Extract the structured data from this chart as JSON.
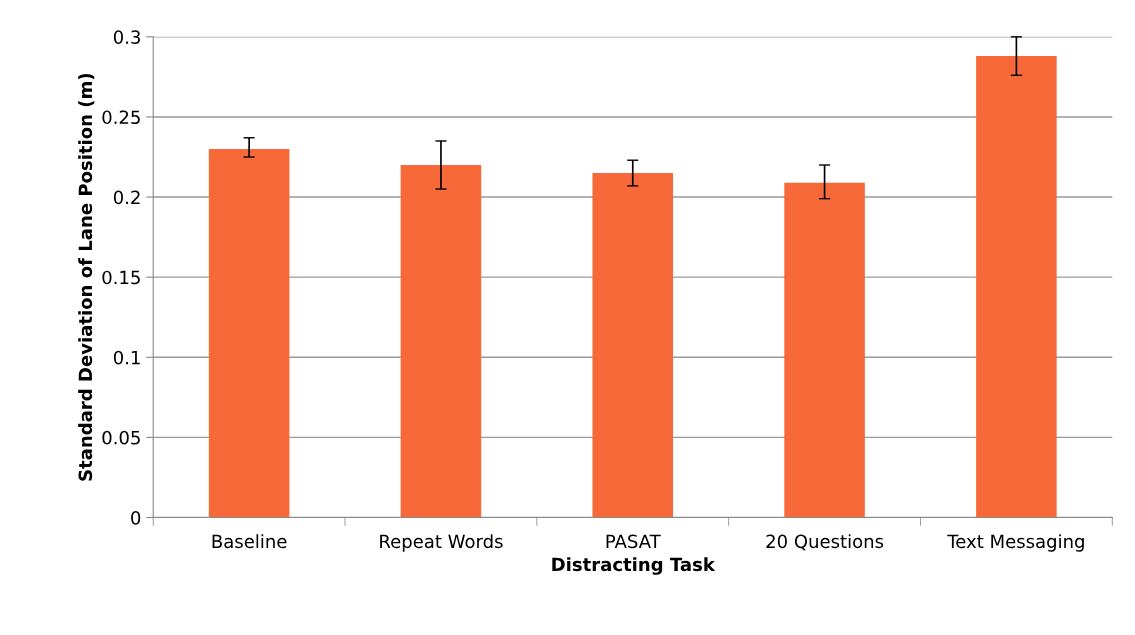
{
  "chart_data": {
    "type": "bar",
    "xlabel": "Distracting Task",
    "ylabel": "Standard Deviation of Lane Position (m)",
    "categories": [
      "Baseline",
      "Repeat Words",
      "PASAT",
      "20 Questions",
      "Text Messaging"
    ],
    "values": [
      0.23,
      0.22,
      0.215,
      0.209,
      0.288
    ],
    "errors": [
      [
        0.225,
        0.237
      ],
      [
        0.205,
        0.235
      ],
      [
        0.207,
        0.223
      ],
      [
        0.199,
        0.22
      ],
      [
        0.276,
        0.3
      ]
    ],
    "color": "#f8693a",
    "ylim": [
      0,
      0.3
    ],
    "yticks": [
      0,
      0.05,
      0.1,
      0.15,
      0.2,
      0.25,
      0.3
    ],
    "grid": "y"
  }
}
